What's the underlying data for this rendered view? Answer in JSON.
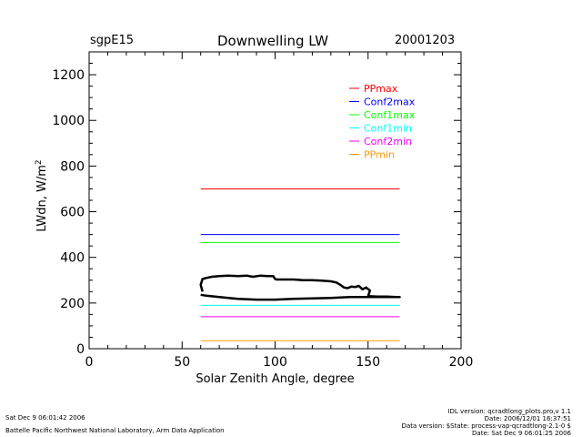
{
  "header": {
    "site": "sgpE15",
    "title": "Downwelling LW",
    "date": "20001203"
  },
  "footer": {
    "left_line1": "Sat Dec  9 06:01:42 2006",
    "left_line2": "Battelle Pacific Northwest National Laboratory, Arm Data Application",
    "right_line1": "IDL version: qcradtlong_plots.pro,v 1.1",
    "right_line2": "Date: 2006/12/01 16:37:51",
    "right_line3": "Data version: $State: process-vap-qcradtlong-2.1-0 $",
    "right_line4": "Date: Sat Dec  9 06:01:25 2006"
  },
  "chart_data": {
    "type": "line",
    "xlabel": "Solar Zenith Angle, degree",
    "ylabel": "LWdn, W/m",
    "ylabel_sup": "2",
    "xlim": [
      0,
      200
    ],
    "ylim": [
      0,
      1300
    ],
    "xticks": [
      0,
      50,
      100,
      150,
      200
    ],
    "yticks": [
      0,
      200,
      400,
      600,
      800,
      1000,
      1200
    ],
    "grid": false,
    "legend": "top-right",
    "series": [
      {
        "name": "PPmax",
        "color": "#ff0000",
        "x": [
          60,
          167
        ],
        "y": [
          700,
          700
        ]
      },
      {
        "name": "Conf2max",
        "color": "#0000ff",
        "x": [
          60,
          167
        ],
        "y": [
          500,
          500
        ]
      },
      {
        "name": "Conf1max",
        "color": "#00ff00",
        "x": [
          60,
          167
        ],
        "y": [
          465,
          465
        ]
      },
      {
        "name": "Conf1min",
        "color": "#00ffff",
        "x": [
          60,
          167
        ],
        "y": [
          190,
          190
        ]
      },
      {
        "name": "Conf2min",
        "color": "#ff00ff",
        "x": [
          60,
          167
        ],
        "y": [
          140,
          140
        ]
      },
      {
        "name": "PPmin",
        "color": "#ff9900",
        "x": [
          60,
          167
        ],
        "y": [
          35,
          35
        ]
      },
      {
        "color": "#000000",
        "x": [
          61,
          60,
          61,
          63,
          66,
          70,
          75,
          80,
          85,
          88,
          92,
          96,
          99,
          100,
          101,
          105,
          110,
          115,
          120,
          125,
          130,
          133,
          135,
          137,
          139,
          141,
          143,
          145,
          147,
          149,
          151,
          150,
          155,
          160,
          165,
          167,
          160,
          150,
          140,
          130,
          120,
          110,
          100,
          90,
          80,
          70,
          63,
          60
        ],
        "y": [
          250,
          280,
          305,
          310,
          315,
          318,
          320,
          318,
          320,
          315,
          320,
          318,
          318,
          305,
          303,
          303,
          303,
          300,
          300,
          298,
          295,
          290,
          280,
          268,
          265,
          272,
          270,
          275,
          260,
          268,
          255,
          230,
          228,
          228,
          226,
          226,
          226,
          226,
          226,
          222,
          220,
          218,
          215,
          215,
          218,
          226,
          232,
          236
        ]
      }
    ]
  }
}
